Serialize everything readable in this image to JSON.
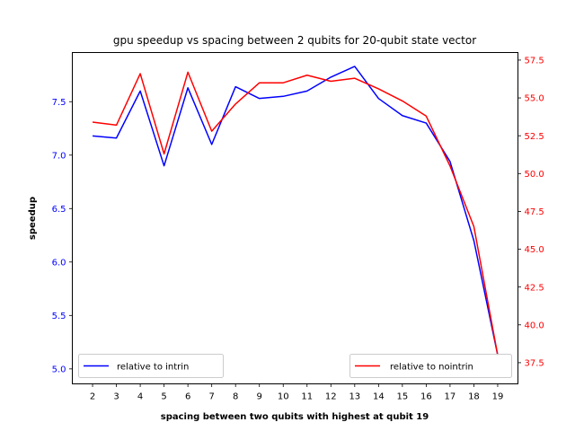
{
  "chart_data": {
    "type": "line",
    "title": "gpu speedup vs spacing between 2 qubits for 20-qubit state vector",
    "xlabel": "spacing between two qubits with highest at qubit 19",
    "ylabel_left": "speedup",
    "ylabel_right": "",
    "x": [
      2,
      3,
      4,
      5,
      6,
      7,
      8,
      9,
      10,
      11,
      12,
      13,
      14,
      15,
      16,
      17,
      18,
      19
    ],
    "x_ticks": [
      "2",
      "3",
      "4",
      "5",
      "6",
      "7",
      "8",
      "9",
      "10",
      "11",
      "12",
      "13",
      "14",
      "15",
      "16",
      "17",
      "18",
      "19"
    ],
    "ylim_left": [
      4.86,
      7.96
    ],
    "ylim_right": [
      36.1,
      58.0
    ],
    "y_ticks_left": [
      "5.0",
      "5.5",
      "6.0",
      "6.5",
      "7.0",
      "7.5"
    ],
    "y_ticks_right": [
      "37.5",
      "40.0",
      "42.5",
      "45.0",
      "47.5",
      "50.0",
      "52.5",
      "55.0",
      "57.5"
    ],
    "series": [
      {
        "name": "relative to intrin",
        "axis": "left",
        "color": "#0000ff",
        "values": [
          7.18,
          7.16,
          7.6,
          6.9,
          7.63,
          7.1,
          7.64,
          7.53,
          7.55,
          7.6,
          7.73,
          7.83,
          7.53,
          7.37,
          7.3,
          6.94,
          6.2,
          5.13
        ]
      },
      {
        "name": "relative to nointrin",
        "axis": "right",
        "color": "#ff0000",
        "values": [
          53.4,
          53.2,
          56.6,
          51.3,
          56.7,
          52.8,
          54.6,
          56.0,
          56.0,
          56.5,
          56.1,
          56.3,
          55.6,
          54.8,
          53.8,
          50.5,
          46.5,
          38.0
        ]
      }
    ],
    "legend": [
      {
        "label": "relative to intrin",
        "placement": "lower left"
      },
      {
        "label": "relative to nointrin",
        "placement": "lower right"
      }
    ],
    "left_axis_color": "#0000ff",
    "right_axis_color": "#ff0000",
    "grid": false
  }
}
